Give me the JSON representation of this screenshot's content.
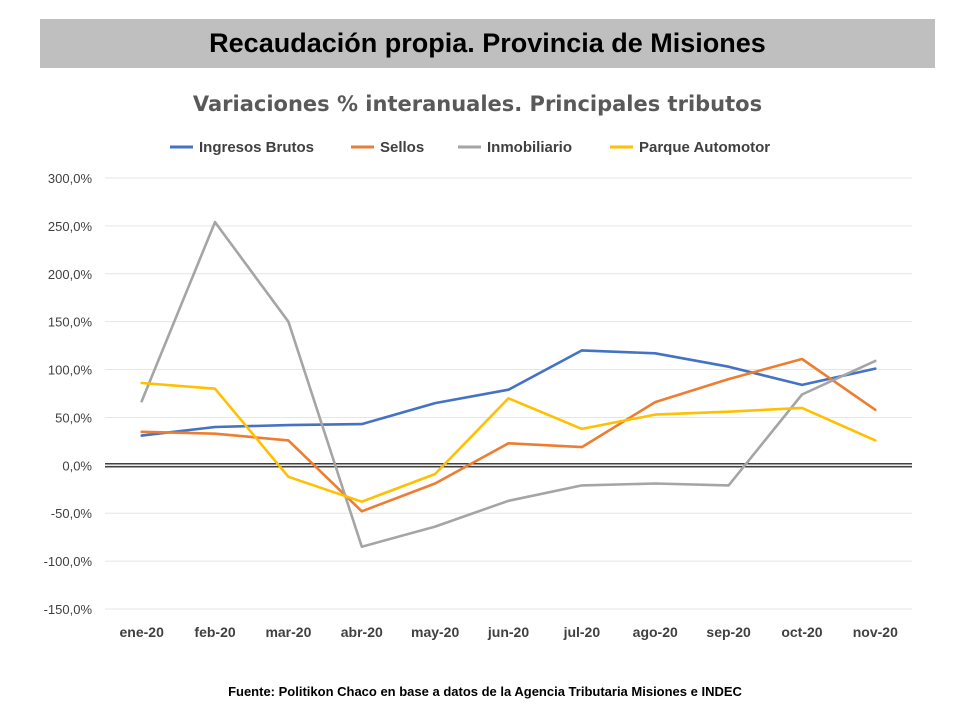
{
  "banner": {
    "title": "Recaudación propia. Provincia de Misiones"
  },
  "source": "Fuente: Politikon Chaco en base a datos de la Agencia Tributaria Misiones e INDEC",
  "chart_data": {
    "type": "line",
    "title": "Variaciones % interanuales. Principales tributos",
    "xlabel": "",
    "ylabel": "",
    "categories": [
      "ene-20",
      "feb-20",
      "mar-20",
      "abr-20",
      "may-20",
      "jun-20",
      "jul-20",
      "ago-20",
      "sep-20",
      "oct-20",
      "nov-20"
    ],
    "ylim": [
      -150,
      300
    ],
    "yticks": [
      300,
      250,
      200,
      150,
      100,
      50,
      0,
      -50,
      -100,
      -150
    ],
    "ytick_labels": [
      "300,0%",
      "250,0%",
      "200,0%",
      "150,0%",
      "100,0%",
      "50,0%",
      "0,0%",
      "-50,0%",
      "-100,0%",
      "-150,0%"
    ],
    "grid": true,
    "legend_position": "top",
    "series": [
      {
        "name": "Ingresos Brutos",
        "color": "#4472c4",
        "values": [
          31,
          40,
          42,
          43,
          65,
          79,
          120,
          117,
          103,
          84,
          101
        ]
      },
      {
        "name": "Sellos",
        "color": "#ed7d31",
        "values": [
          35,
          33,
          26,
          -48,
          -19,
          23,
          19,
          66,
          90,
          111,
          58
        ]
      },
      {
        "name": "Inmobiliario",
        "color": "#a5a5a5",
        "values": [
          67,
          254,
          150,
          -85,
          -64,
          -37,
          -21,
          -19,
          -21,
          74,
          109
        ]
      },
      {
        "name": "Parque Automotor",
        "color": "#ffc000",
        "values": [
          86,
          80,
          -12,
          -38,
          -9,
          70,
          38,
          53,
          56,
          60,
          26
        ]
      }
    ]
  }
}
